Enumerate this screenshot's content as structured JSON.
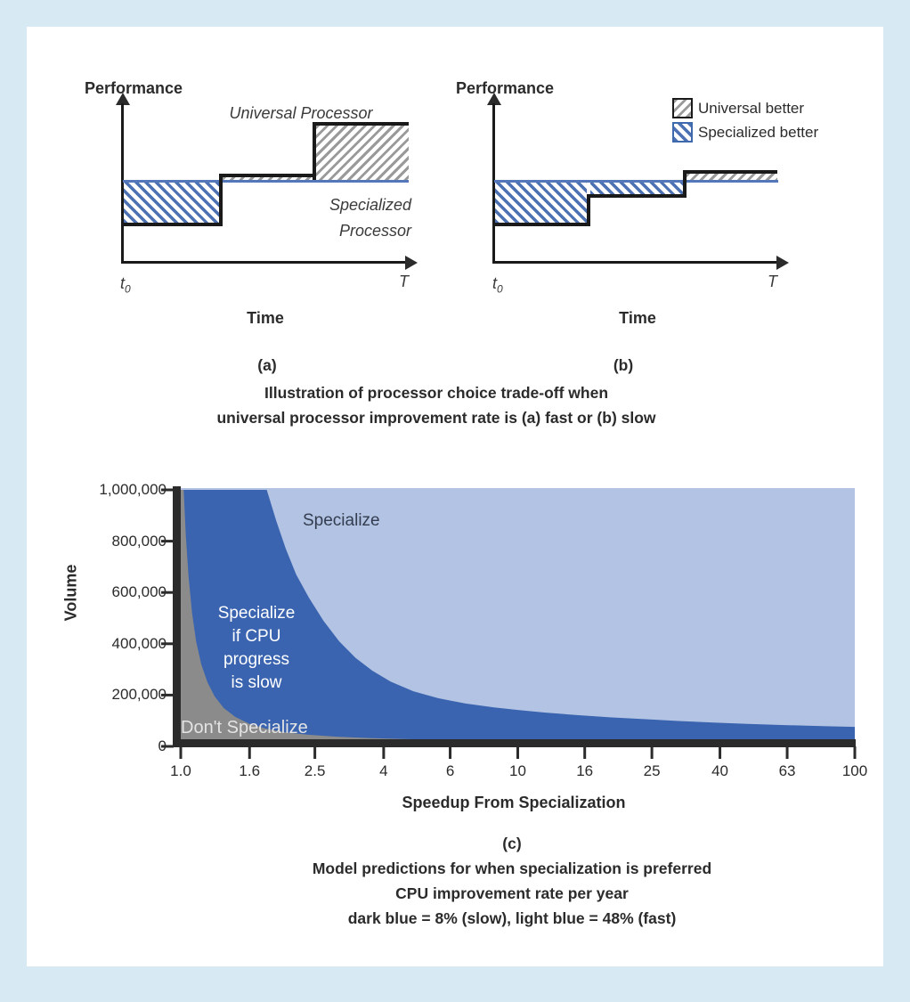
{
  "figure": {
    "panel_a": {
      "tag": "(a)",
      "y_axis_label": "Performance",
      "x_axis_label": "Time",
      "x_origin_label": "t",
      "x_origin_sub": "0",
      "x_end_label": "T",
      "line_label_universal": "Universal Processor",
      "line_label_specialized": "Specialized\nProcessor"
    },
    "panel_b": {
      "tag": "(b)",
      "y_axis_label": "Performance",
      "x_axis_label": "Time",
      "x_origin_label": "t",
      "x_origin_sub": "0",
      "x_end_label": "T",
      "legend": [
        {
          "label": "Universal better",
          "pattern": "gray-backslash-hatch"
        },
        {
          "label": "Specialized better",
          "pattern": "blue-slash-hatch"
        }
      ]
    },
    "caption_ab_line1": "Illustration of processor choice trade-off when",
    "caption_ab_line2": "universal processor improvement rate is (a) fast or (b) slow"
  },
  "chart_data": {
    "type": "area",
    "tag": "(c)",
    "caption_line1": "Model predictions for when specialization is preferred",
    "caption_line2": "CPU improvement rate per year",
    "caption_line3": "dark blue = 8% (slow), light blue = 48% (fast)",
    "xlabel": "Speedup From Specialization",
    "ylabel": "Volume",
    "x_scale": "log",
    "xlim": [
      1,
      100
    ],
    "ylim": [
      0,
      1000000
    ],
    "grid": false,
    "x_ticks": [
      {
        "value": 1.0,
        "label": "1.0"
      },
      {
        "value": 1.6,
        "label": "1.6"
      },
      {
        "value": 2.5,
        "label": "2.5"
      },
      {
        "value": 4,
        "label": "4"
      },
      {
        "value": 6.3,
        "label": "6"
      },
      {
        "value": 10,
        "label": "10"
      },
      {
        "value": 15.8,
        "label": "16"
      },
      {
        "value": 25,
        "label": "25"
      },
      {
        "value": 39.8,
        "label": "40"
      },
      {
        "value": 63,
        "label": "63"
      },
      {
        "value": 100,
        "label": "100"
      }
    ],
    "y_ticks": [
      {
        "value": 0,
        "label": "0"
      },
      {
        "value": 200000,
        "label": "200,000"
      },
      {
        "value": 400000,
        "label": "400,000"
      },
      {
        "value": 600000,
        "label": "600,000"
      },
      {
        "value": 800000,
        "label": "800,000"
      },
      {
        "value": 1000000,
        "label": "1,000,000"
      }
    ],
    "region_labels": {
      "specialize": "Specialize",
      "specialize_if_slow": "Specialize\nif CPU\nprogress\nis slow",
      "dont_specialize": "Don't Specialize"
    },
    "regions": [
      {
        "name": "Specialize (fast CPU progress, 48% per year)",
        "color": "#b2c3e3"
      },
      {
        "name": "Specialize if CPU progress is slow (8% per year)",
        "color": "#3a64af"
      },
      {
        "name": "Don't Specialize",
        "color": "#8b8b8b"
      }
    ],
    "series": [
      {
        "name": "threshold volume, CPU progress fast (48% per year)",
        "points": [
          [
            1.8,
            1000000
          ],
          [
            1.92,
            880000
          ],
          [
            2.05,
            770000
          ],
          [
            2.2,
            670000
          ],
          [
            2.4,
            580000
          ],
          [
            2.65,
            490000
          ],
          [
            2.95,
            410000
          ],
          [
            3.3,
            345000
          ],
          [
            3.7,
            295000
          ],
          [
            4.2,
            252000
          ],
          [
            4.9,
            215000
          ],
          [
            5.8,
            188000
          ],
          [
            7,
            167000
          ],
          [
            8.5,
            152000
          ],
          [
            10,
            142000
          ],
          [
            12,
            132000
          ],
          [
            15,
            122000
          ],
          [
            19,
            113000
          ],
          [
            24,
            106000
          ],
          [
            30,
            99000
          ],
          [
            38,
            93000
          ],
          [
            48,
            88000
          ],
          [
            62,
            83000
          ],
          [
            80,
            79000
          ],
          [
            100,
            76000
          ]
        ]
      },
      {
        "name": "threshold volume, CPU progress slow (8% per year)",
        "points": [
          [
            1.02,
            1000000
          ],
          [
            1.035,
            820000
          ],
          [
            1.055,
            660000
          ],
          [
            1.08,
            520000
          ],
          [
            1.11,
            410000
          ],
          [
            1.15,
            320000
          ],
          [
            1.2,
            250000
          ],
          [
            1.26,
            195000
          ],
          [
            1.34,
            150000
          ],
          [
            1.45,
            115000
          ],
          [
            1.6,
            88000
          ],
          [
            1.8,
            68000
          ],
          [
            2.05,
            55000
          ],
          [
            2.4,
            45000
          ],
          [
            2.9,
            38000
          ],
          [
            3.6,
            32500
          ],
          [
            4.6,
            28500
          ],
          [
            6,
            25500
          ],
          [
            8,
            23500
          ],
          [
            11,
            22000
          ],
          [
            16,
            21000
          ],
          [
            25,
            20000
          ],
          [
            45,
            19000
          ],
          [
            100,
            18000
          ]
        ]
      }
    ]
  }
}
